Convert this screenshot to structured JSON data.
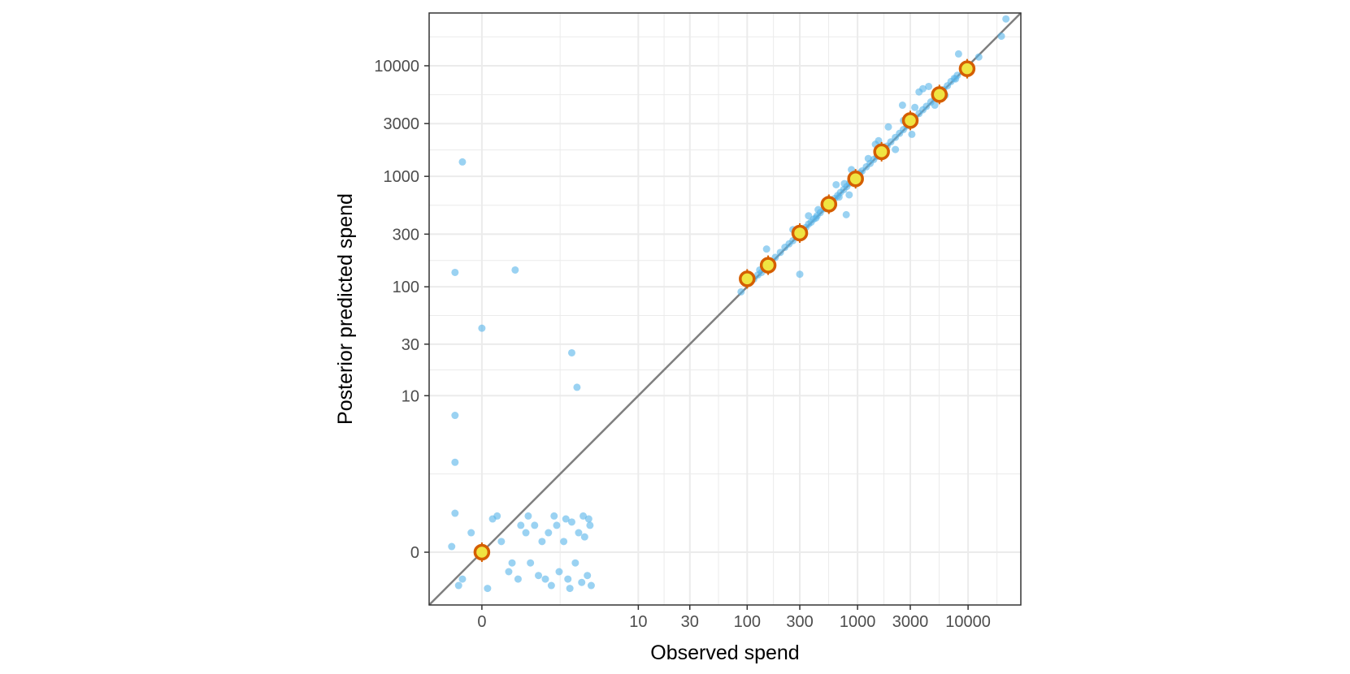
{
  "chart_data": {
    "type": "scatter",
    "title": "",
    "xlabel": "Observed spend",
    "ylabel": "Posterior predicted spend",
    "scale": "pseudo-log (0 shown at origin, log-spaced above 10)",
    "x_ticks": [
      0,
      10,
      30,
      100,
      300,
      1000,
      3000,
      10000
    ],
    "x_tick_labels": [
      "0",
      "10",
      "30",
      "100",
      "300",
      "1000",
      "3000",
      "10000"
    ],
    "y_ticks": [
      0,
      10,
      30,
      100,
      300,
      1000,
      3000,
      10000
    ],
    "y_tick_labels": [
      "0",
      "10",
      "30",
      "100",
      "300",
      "1000",
      "3000",
      "10000"
    ],
    "xlim": [
      -0.8,
      30000
    ],
    "ylim": [
      -0.8,
      30000
    ],
    "grid": true,
    "reference_line": "y = x",
    "colors": {
      "points": "#56B4E9",
      "highlight_fill": "#F0E442",
      "highlight_stroke": "#D55E00",
      "reference_line": "#7f7f7f",
      "grid": "#ebebeb",
      "panel_border": "#333333"
    },
    "series": [
      {
        "role": "individual predictions",
        "points": [
          [
            -0.3,
            2.2
          ],
          [
            -0.2,
            -0.3
          ],
          [
            0.1,
            0.4
          ],
          [
            0.3,
            -0.2
          ],
          [
            -0.1,
            0.2
          ],
          [
            0.2,
            0.1
          ],
          [
            0.35,
            -0.1
          ],
          [
            -0.35,
            0.05
          ],
          [
            0.5,
            0.3
          ],
          [
            -0.25,
            -0.4
          ],
          [
            0.45,
            -0.3
          ],
          [
            0.6,
            0.2
          ],
          [
            0.7,
            -0.1
          ],
          [
            0.8,
            0.3
          ],
          [
            0.9,
            -0.25
          ],
          [
            1.0,
            0.1
          ],
          [
            1.1,
            -0.3
          ],
          [
            1.2,
            0.2
          ],
          [
            1.3,
            -0.4
          ],
          [
            1.5,
            0.3
          ],
          [
            1.6,
            -0.2
          ],
          [
            1.8,
            0.1
          ],
          [
            2.0,
            -0.3
          ],
          [
            2.2,
            0.35
          ],
          [
            2.4,
            -0.1
          ],
          [
            2.6,
            0.2
          ],
          [
            2.8,
            -0.35
          ],
          [
            3.0,
            0.15
          ],
          [
            3.2,
            -0.25
          ],
          [
            3.4,
            0.3
          ],
          [
            -0.3,
            0.5
          ],
          [
            0.05,
            -0.45
          ],
          [
            0.65,
            0.45
          ],
          [
            1.4,
            0.45
          ],
          [
            2.1,
            -0.45
          ],
          [
            2.9,
            0.45
          ],
          [
            3.3,
            0.4
          ],
          [
            3.5,
            -0.4
          ],
          [
            0.15,
            0.45
          ],
          [
            1.9,
            0.4
          ],
          [
            -0.3,
            6.5
          ],
          [
            -0.3,
            135
          ],
          [
            0.4,
            142
          ],
          [
            0.0,
            42
          ],
          [
            2.2,
            25
          ],
          [
            2.5,
            12
          ],
          [
            -0.2,
            1350
          ],
          [
            88,
            90
          ],
          [
            105,
            112
          ],
          [
            115,
            118
          ],
          [
            125,
            128
          ],
          [
            130,
            142
          ],
          [
            135,
            135
          ],
          [
            150,
            152
          ],
          [
            165,
            168
          ],
          [
            180,
            185
          ],
          [
            200,
            205
          ],
          [
            220,
            228
          ],
          [
            240,
            245
          ],
          [
            260,
            262
          ],
          [
            280,
            285
          ],
          [
            300,
            310
          ],
          [
            320,
            330
          ],
          [
            340,
            345
          ],
          [
            360,
            370
          ],
          [
            380,
            385
          ],
          [
            400,
            410
          ],
          [
            430,
            440
          ],
          [
            460,
            470
          ],
          [
            500,
            510
          ],
          [
            540,
            550
          ],
          [
            580,
            590
          ],
          [
            620,
            630
          ],
          [
            660,
            670
          ],
          [
            700,
            715
          ],
          [
            750,
            760
          ],
          [
            800,
            810
          ],
          [
            850,
            870
          ],
          [
            900,
            920
          ],
          [
            950,
            960
          ],
          [
            1000,
            1020
          ],
          [
            1050,
            1070
          ],
          [
            1100,
            1120
          ],
          [
            1200,
            1220
          ],
          [
            1300,
            1310
          ],
          [
            1400,
            1420
          ],
          [
            1500,
            1520
          ],
          [
            1600,
            1640
          ],
          [
            1700,
            1730
          ],
          [
            1850,
            1880
          ],
          [
            2000,
            2050
          ],
          [
            2200,
            2250
          ],
          [
            2400,
            2450
          ],
          [
            2600,
            2650
          ],
          [
            2800,
            2860
          ],
          [
            3000,
            3050
          ],
          [
            3300,
            3350
          ],
          [
            3600,
            3700
          ],
          [
            3900,
            4000
          ],
          [
            4200,
            4300
          ],
          [
            4600,
            4700
          ],
          [
            5000,
            5100
          ],
          [
            5500,
            5600
          ],
          [
            6000,
            6100
          ],
          [
            6500,
            6600
          ],
          [
            7000,
            7200
          ],
          [
            7500,
            7700
          ],
          [
            8000,
            8200
          ],
          [
            9000,
            9100
          ],
          [
            10000,
            10200
          ],
          [
            150,
            220
          ],
          [
            260,
            330
          ],
          [
            300,
            130
          ],
          [
            360,
            440
          ],
          [
            420,
            420
          ],
          [
            440,
            500
          ],
          [
            640,
            840
          ],
          [
            680,
            650
          ],
          [
            760,
            860
          ],
          [
            790,
            450
          ],
          [
            840,
            680
          ],
          [
            880,
            1150
          ],
          [
            1250,
            1450
          ],
          [
            1450,
            1950
          ],
          [
            1550,
            2100
          ],
          [
            1700,
            1750
          ],
          [
            1900,
            2800
          ],
          [
            2200,
            1750
          ],
          [
            2550,
            4400
          ],
          [
            2600,
            3200
          ],
          [
            3100,
            2400
          ],
          [
            3300,
            4200
          ],
          [
            3600,
            5800
          ],
          [
            3900,
            6200
          ],
          [
            4400,
            6500
          ],
          [
            5000,
            4400
          ],
          [
            6200,
            5400
          ],
          [
            7700,
            7600
          ],
          [
            8200,
            12800
          ],
          [
            12500,
            12000
          ],
          [
            20000,
            18500
          ],
          [
            22000,
            26500
          ]
        ]
      },
      {
        "role": "binned means",
        "points": [
          [
            0,
            0
          ],
          [
            100,
            118
          ],
          [
            155,
            157
          ],
          [
            300,
            307
          ],
          [
            550,
            560
          ],
          [
            960,
            950
          ],
          [
            1650,
            1670
          ],
          [
            3000,
            3200
          ],
          [
            5500,
            5500
          ],
          [
            9800,
            9400
          ]
        ]
      }
    ]
  }
}
